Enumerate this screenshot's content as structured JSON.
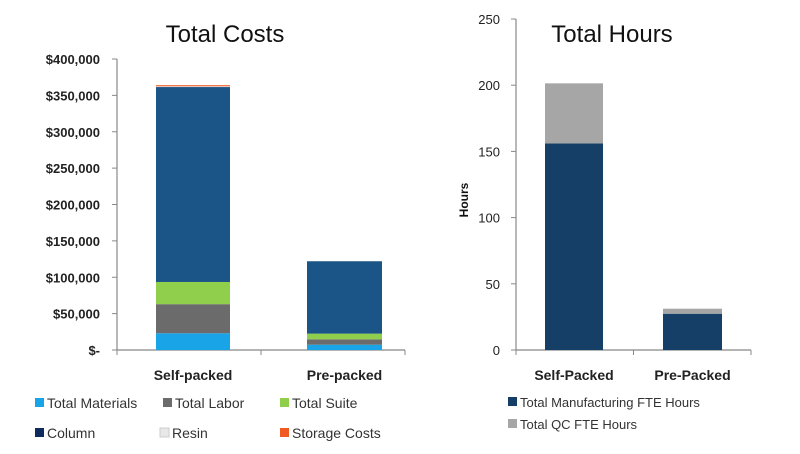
{
  "chart_data": [
    {
      "type": "bar",
      "stacked": true,
      "title": "Total Costs",
      "xlabel": "",
      "ylabel": "",
      "ylim": [
        0,
        400000
      ],
      "yticks": [
        0,
        50000,
        100000,
        150000,
        200000,
        250000,
        300000,
        350000,
        400000
      ],
      "ytick_labels": [
        "$-",
        "$50,000",
        "$100,000",
        "$150,000",
        "$200,000",
        "$250,000",
        "$300,000",
        "$350,000",
        "$400,000"
      ],
      "categories": [
        "Self-packed",
        "Pre-packed"
      ],
      "series": [
        {
          "name": "Total Materials",
          "color": "#18a4e6",
          "values": [
            23000,
            7300
          ]
        },
        {
          "name": "Total Labor",
          "color": "#6b6b6b",
          "values": [
            40000,
            7400
          ]
        },
        {
          "name": "Total Suite",
          "color": "#8fcf4c",
          "values": [
            30500,
            7800
          ]
        },
        {
          "name": "Column",
          "color": "#1b5486",
          "legend_color": "#0f2a5c",
          "values": [
            268500,
            99500
          ]
        },
        {
          "name": "Resin",
          "color": "#e8e8e8",
          "values": [
            500,
            0
          ]
        },
        {
          "name": "Storage Costs",
          "color": "#f05a22",
          "values": [
            1500,
            0
          ]
        }
      ],
      "grid": false,
      "legend": "bottom"
    },
    {
      "type": "bar",
      "stacked": true,
      "title": "Total Hours",
      "xlabel": "",
      "ylabel": "Hours",
      "ylim": [
        0,
        250
      ],
      "yticks": [
        0,
        50,
        100,
        150,
        200,
        250
      ],
      "ytick_labels": [
        "0",
        "50",
        "100",
        "150",
        "200",
        "250"
      ],
      "categories": [
        "Self-Packed",
        "Pre-Packed"
      ],
      "series": [
        {
          "name": "Total Manufacturing FTE Hours",
          "color": "#153f66",
          "values": [
            156,
            27.4
          ]
        },
        {
          "name": "Total QC FTE Hours",
          "color": "#a6a6a6",
          "values": [
            45.4,
            3.8
          ]
        }
      ],
      "grid": false,
      "legend": "bottom"
    }
  ]
}
